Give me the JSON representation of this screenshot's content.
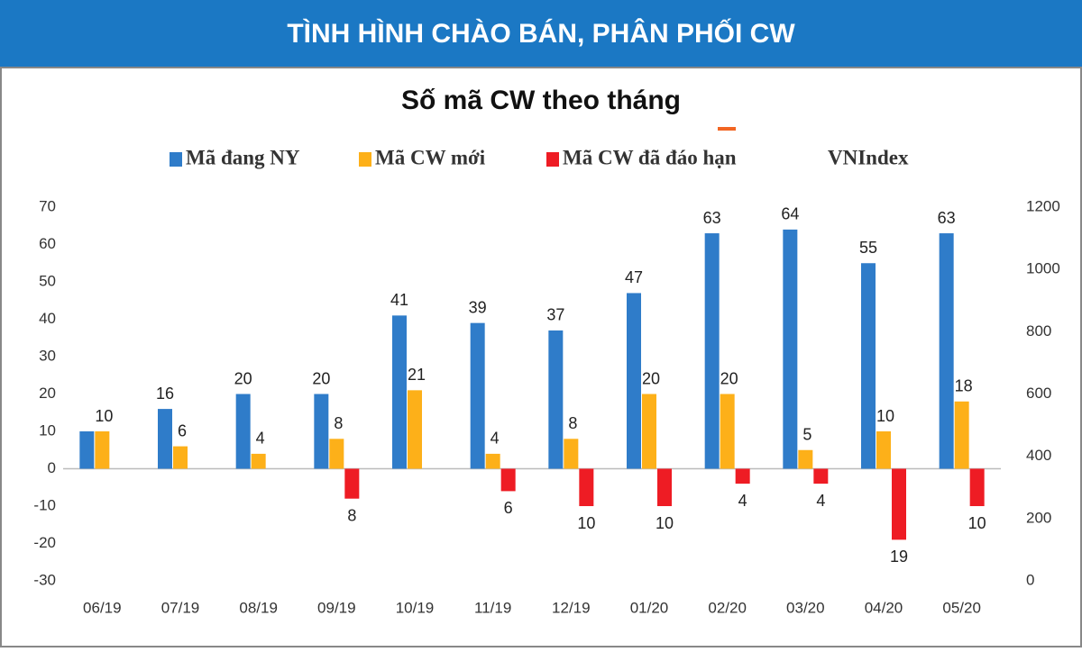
{
  "header": {
    "title": "TÌNH HÌNH CHÀO BÁN, PHÂN PHỐI CW"
  },
  "chart_data": {
    "type": "bar",
    "title": "Số mã CW theo tháng",
    "categories": [
      "06/19",
      "07/19",
      "08/19",
      "09/19",
      "10/19",
      "11/19",
      "12/19",
      "01/20",
      "02/20",
      "03/20",
      "04/20",
      "05/20"
    ],
    "series": [
      {
        "name": "Mã đang NY",
        "color": "#2f7cc9",
        "values": [
          10,
          16,
          20,
          20,
          41,
          39,
          37,
          47,
          63,
          64,
          55,
          63
        ],
        "value_labels": [
          null,
          "16",
          "20",
          "20",
          "41",
          "39",
          "37",
          "47",
          "63",
          "64",
          "55",
          "63"
        ]
      },
      {
        "name": "Mã CW mới",
        "color": "#fdb019",
        "values": [
          10,
          6,
          4,
          8,
          21,
          4,
          8,
          20,
          20,
          5,
          10,
          18
        ]
      },
      {
        "name": "Mã CW đã đáo hạn",
        "color": "#ee1c24",
        "values": [
          null,
          null,
          null,
          -8,
          null,
          -6,
          -10,
          -10,
          -4,
          -4,
          -19,
          -10
        ],
        "value_labels": [
          null,
          null,
          null,
          "8",
          null,
          "6",
          "10",
          "10",
          "4",
          "4",
          "19",
          "10"
        ]
      },
      {
        "name": "VNIndex",
        "color": "#f26522",
        "axis": "y2",
        "values": [
          null,
          null,
          null,
          null,
          null,
          null,
          null,
          null,
          null,
          null,
          null,
          null
        ]
      }
    ],
    "ylim": [
      -30,
      70
    ],
    "yticks": [
      -30,
      -20,
      -10,
      0,
      10,
      20,
      30,
      40,
      50,
      60,
      70
    ],
    "y2lim": [
      0,
      1200
    ],
    "y2ticks": [
      0,
      200,
      400,
      600,
      800,
      1000,
      1200
    ]
  }
}
